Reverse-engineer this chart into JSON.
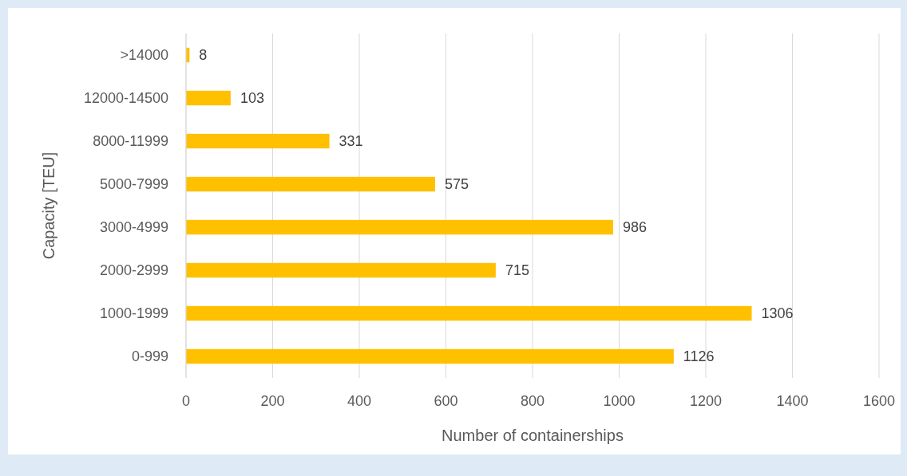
{
  "chart_data": {
    "type": "bar",
    "orientation": "horizontal",
    "xlabel": "Number of containerships",
    "ylabel": "Capacity [TEU]",
    "categories": [
      ">14000",
      "12000-14500",
      "8000-11999",
      "5000-7999",
      "3000-4999",
      "2000-2999",
      "1000-1999",
      "0-999"
    ],
    "values": [
      8,
      103,
      331,
      575,
      986,
      715,
      1306,
      1126
    ],
    "color": "#ffc000",
    "xlim": [
      0,
      1600
    ],
    "xticks": [
      0,
      200,
      400,
      600,
      800,
      1000,
      1200,
      1400,
      1600
    ],
    "grid": "x",
    "data_labels": true
  }
}
